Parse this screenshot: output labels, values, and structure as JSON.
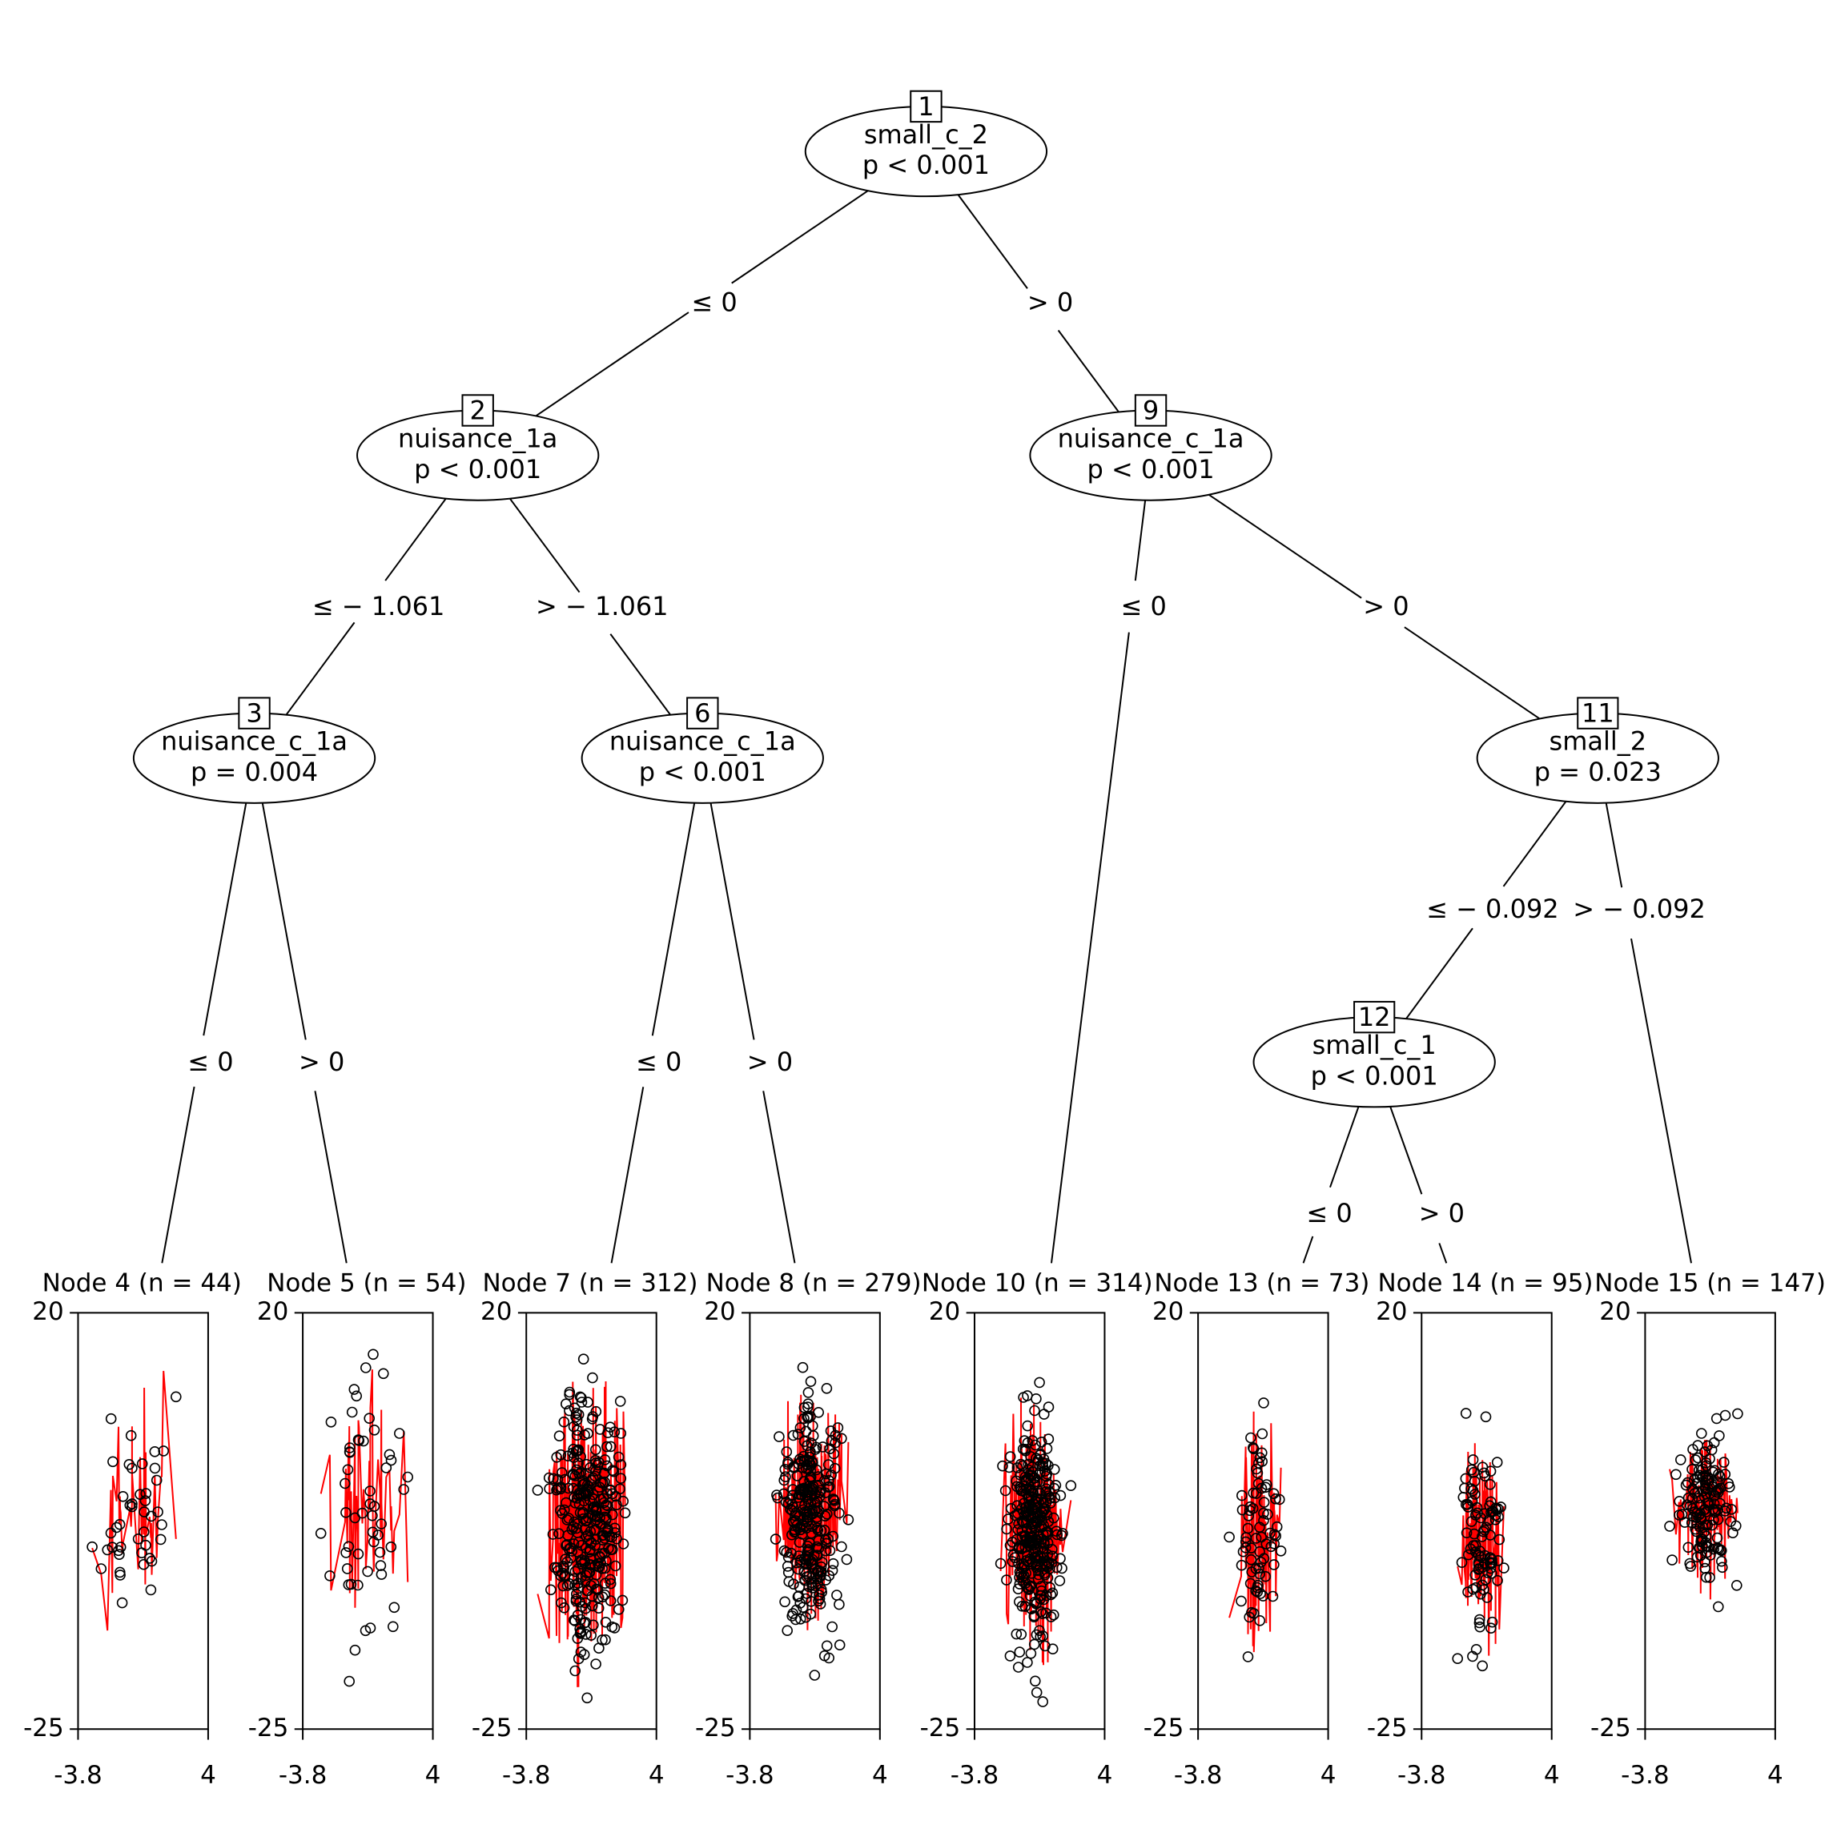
{
  "tree": {
    "inner_nodes": [
      {
        "id": "1",
        "variable": "small_c_2",
        "p_value": "p < 0.001"
      },
      {
        "id": "2",
        "variable": "nuisance_1a",
        "p_value": "p < 0.001"
      },
      {
        "id": "3",
        "variable": "nuisance_c_1a",
        "p_value": "p = 0.004"
      },
      {
        "id": "6",
        "variable": "nuisance_c_1a",
        "p_value": "p < 0.001"
      },
      {
        "id": "9",
        "variable": "nuisance_c_1a",
        "p_value": "p < 0.001"
      },
      {
        "id": "11",
        "variable": "small_2",
        "p_value": "p = 0.023"
      },
      {
        "id": "12",
        "variable": "small_c_1",
        "p_value": "p < 0.001"
      }
    ],
    "edges": [
      {
        "from": "1",
        "to": "2",
        "label": "≤ 0"
      },
      {
        "from": "1",
        "to": "9",
        "label": "> 0"
      },
      {
        "from": "2",
        "to": "3",
        "label": "≤ − 1.061"
      },
      {
        "from": "2",
        "to": "6",
        "label": "> − 1.061"
      },
      {
        "from": "3",
        "to": "4",
        "label": "≤ 0"
      },
      {
        "from": "3",
        "to": "5",
        "label": "> 0"
      },
      {
        "from": "6",
        "to": "7",
        "label": "≤ 0"
      },
      {
        "from": "6",
        "to": "8",
        "label": "> 0"
      },
      {
        "from": "9",
        "to": "10",
        "label": "≤ 0"
      },
      {
        "from": "9",
        "to": "11",
        "label": "> 0"
      },
      {
        "from": "11",
        "to": "12",
        "label": "≤ − 0.092"
      },
      {
        "from": "11",
        "to": "15",
        "label": "> − 0.092"
      },
      {
        "from": "12",
        "to": "13",
        "label": "≤ 0"
      },
      {
        "from": "12",
        "to": "14",
        "label": "> 0"
      }
    ],
    "terminal_nodes": [
      {
        "id": "4",
        "title": "Node 4 (n = 44)",
        "n": 44
      },
      {
        "id": "5",
        "title": "Node 5 (n = 54)",
        "n": 54
      },
      {
        "id": "7",
        "title": "Node 7 (n = 312)",
        "n": 312
      },
      {
        "id": "8",
        "title": "Node 8 (n = 279)",
        "n": 279
      },
      {
        "id": "10",
        "title": "Node 10 (n = 314)",
        "n": 314
      },
      {
        "id": "13",
        "title": "Node 13 (n = 73)",
        "n": 73
      },
      {
        "id": "14",
        "title": "Node 14 (n = 95)",
        "n": 95
      },
      {
        "id": "15",
        "title": "Node 15 (n = 147)",
        "n": 147
      }
    ]
  },
  "panel_axes": {
    "x_tick_labels": [
      "-3.8",
      "4"
    ],
    "y_tick_labels": [
      "20",
      "-25"
    ],
    "xlim": [
      -3.8,
      4
    ],
    "ylim": [
      -25,
      20
    ]
  },
  "colors": {
    "line": "#000000",
    "points": "#000000",
    "fit": "#ff0000"
  }
}
